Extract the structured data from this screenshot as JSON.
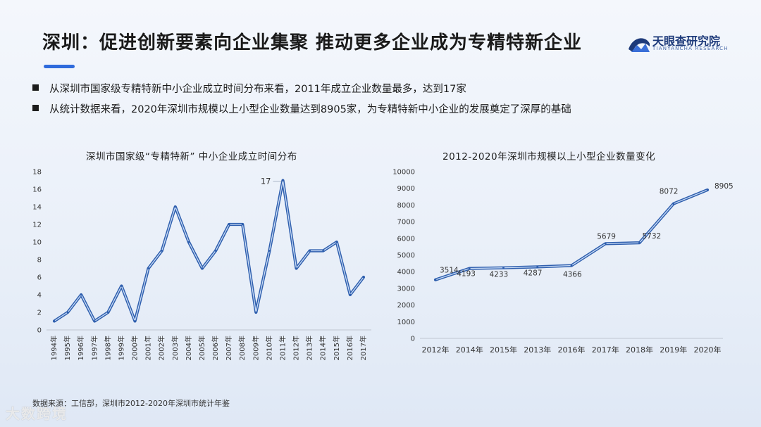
{
  "title": "深圳：促进创新要素向企业集聚 推动更多企业成为专精特新企业",
  "logo": {
    "name": "天眼查研究院",
    "sub": "TIANYANCHA RESEARCH"
  },
  "bullets": [
    "从深圳市国家级专精特新中小企业成立时间分布来看，2011年成立企业数量最多，达到17家",
    "从统计数据来看，2020年深圳市规模以上小型企业数量达到8905家，为专精特新中小企业的发展奠定了深厚的基础"
  ],
  "source": "数据来源：工信部，深圳市2012-2020年深圳市统计年鉴",
  "watermark": "大数跨境",
  "colors": {
    "line": "#2f5fae",
    "line_highlight": "#c9dcf6",
    "accent": "#2f6bdc"
  },
  "chart_data": [
    {
      "type": "line",
      "title": "深圳市国家级“专精特新” 中小企业成立时间分布",
      "categories": [
        "1994年",
        "1995年",
        "1996年",
        "1997年",
        "1998年",
        "1999年",
        "2000年",
        "2001年",
        "2002年",
        "2003年",
        "2004年",
        "2005年",
        "2006年",
        "2007年",
        "2008年",
        "2009年",
        "2010年",
        "2011年",
        "2012年",
        "2013年",
        "2014年",
        "2015年",
        "2016年",
        "2017年"
      ],
      "values": [
        1,
        2,
        4,
        1,
        2,
        5,
        1,
        7,
        9,
        14,
        10,
        7,
        9,
        12,
        12,
        2,
        9,
        17,
        7,
        9,
        9,
        10,
        4,
        6
      ],
      "ylim": [
        0,
        18
      ],
      "yticks": [
        0,
        2,
        4,
        6,
        8,
        10,
        12,
        14,
        16,
        18
      ],
      "annotations": [
        {
          "index": 17,
          "label": "17"
        }
      ],
      "grid": false,
      "legend": "none"
    },
    {
      "type": "line",
      "title": "2012-2020年深圳市规模以上小型企业数量变化",
      "categories": [
        "2012年",
        "2014年",
        "2015年",
        "2013年",
        "2016年",
        "2017年",
        "2018年",
        "2019年",
        "2020年"
      ],
      "values": [
        3514,
        4193,
        4233,
        4287,
        4366,
        5679,
        5732,
        8072,
        8905
      ],
      "data_labels": [
        "3514",
        "4193",
        "4233",
        "4287",
        "4366",
        "5679",
        "5732",
        "8072",
        "8905"
      ],
      "ylim": [
        0,
        10000
      ],
      "yticks": [
        0,
        1000,
        2000,
        3000,
        4000,
        5000,
        6000,
        7000,
        8000,
        9000,
        10000
      ],
      "grid": false,
      "legend": "none"
    }
  ]
}
